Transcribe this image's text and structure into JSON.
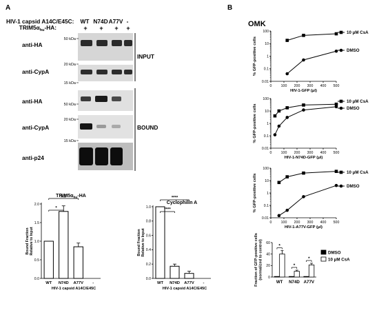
{
  "panelA": {
    "label": "A",
    "header": {
      "row1_label": "HIV-1 capsid A14C/E45C:",
      "row2_label": "TRIM5α",
      "row2_sub": "hu",
      "row2_suffix": "-HA:",
      "lanes": [
        "WT",
        "N74D",
        "A77V",
        "-"
      ],
      "trim_marks": [
        "+",
        "+",
        "+",
        "+"
      ]
    },
    "blots": {
      "input_ha": {
        "label": "anti-HA",
        "mw_top": "50 kDa",
        "mw_bottom": "20 kDa"
      },
      "input_cypa": {
        "label": "anti-CypA",
        "mw_bottom": "15 kDa"
      },
      "input_bracket": "INPUT",
      "bound_ha": {
        "label": "anti-HA",
        "mw": "50 kDa"
      },
      "bound_cypa": {
        "label": "anti-CypA",
        "mw_top": "20 kDa",
        "mw_bottom": "15 kDa"
      },
      "bound_bracket": "BOUND",
      "p24": {
        "label": "anti-p24"
      }
    }
  },
  "panelB": {
    "label": "B",
    "cell_line": "OMK"
  },
  "chart_data": [
    {
      "type": "bar",
      "title": "TRIM5αhu-HA",
      "title_main": "TRIM5α",
      "title_sub": "hu",
      "title_suffix": "-HA",
      "categories": [
        "WT",
        "N74D",
        "A77V",
        "-"
      ],
      "values": [
        1.0,
        1.8,
        0.85,
        0
      ],
      "errors": [
        0,
        0.15,
        0.1,
        0
      ],
      "ylabel": "Bound Fraction\nRelative to Input",
      "ylabel_lines": [
        "Bound Fraction",
        "Relative to Input"
      ],
      "xlabel": "HIV-1 capsid A14C/E45C",
      "ylim": [
        0,
        2.0
      ],
      "yticks": [
        "0.0",
        "0.5",
        "1.0",
        "1.5",
        "2.0"
      ],
      "ytick_values": [
        0,
        0.5,
        1.0,
        1.5,
        2.0
      ],
      "significance": [
        {
          "pair": [
            0,
            1
          ],
          "label": "*"
        },
        {
          "pair": [
            0,
            2
          ],
          "label": "NS"
        }
      ]
    },
    {
      "type": "bar",
      "title": "Cyclophilin A",
      "categories": [
        "WT",
        "N74D",
        "A77V",
        "-"
      ],
      "values": [
        1.0,
        0.17,
        0.07,
        0
      ],
      "errors": [
        0,
        0.03,
        0.03,
        0
      ],
      "ylabel": "Bound Fraction\nRelative to Input",
      "ylabel_lines": [
        "Bound Fraction",
        "Relative to Input"
      ],
      "xlabel": "HIV-1 capsid A14C/E45C",
      "ylim": [
        0,
        1.0
      ],
      "yticks": [
        "0.0",
        "0.2",
        "0.4",
        "0.6",
        "0.8",
        "1.0"
      ],
      "ytick_values": [
        0,
        0.2,
        0.4,
        0.6,
        0.8,
        1.0
      ],
      "significance": [
        {
          "pair": [
            0,
            1
          ],
          "label": "****"
        },
        {
          "pair": [
            0,
            2
          ],
          "label": "****"
        }
      ]
    },
    {
      "type": "line",
      "xlabel": "HIV-1-GFP (μl)",
      "ylabel": "% GFP-positive cells",
      "xlim": [
        0,
        500
      ],
      "xticks": [
        0,
        100,
        200,
        300,
        400,
        500
      ],
      "ylim": [
        0.01,
        100
      ],
      "yscale": "log",
      "yticks": [
        "0.01",
        "0.1",
        "1",
        "10",
        "100"
      ],
      "ytick_values": [
        0.01,
        0.1,
        1,
        10,
        100
      ],
      "series": [
        {
          "name": "10 μM CsA",
          "marker": "square",
          "x": [
            125,
            250,
            500
          ],
          "y": [
            18,
            45,
            60
          ]
        },
        {
          "name": "DMSO",
          "marker": "circle",
          "x": [
            125,
            250,
            500
          ],
          "y": [
            0.04,
            0.5,
            2.5
          ]
        }
      ]
    },
    {
      "type": "line",
      "xlabel": "HIV-1-N74D-GFP (μl)",
      "ylabel": "% GFP-positive cells",
      "xlim": [
        0,
        500
      ],
      "xticks": [
        0,
        100,
        200,
        300,
        400,
        500
      ],
      "ylim": [
        0.01,
        100
      ],
      "yscale": "log",
      "yticks": [
        "0.01",
        "0.1",
        "1",
        "10",
        "100"
      ],
      "ytick_values": [
        0.01,
        0.1,
        1,
        10,
        100
      ],
      "series": [
        {
          "name": "10 μM CsA",
          "marker": "square",
          "x": [
            31.25,
            62.5,
            125,
            250,
            500
          ],
          "y": [
            4,
            10,
            18,
            30,
            35
          ]
        },
        {
          "name": "DMSO",
          "marker": "circle",
          "x": [
            31.25,
            62.5,
            125,
            250,
            500
          ],
          "y": [
            0.12,
            0.6,
            3,
            12,
            22
          ]
        }
      ]
    },
    {
      "type": "line",
      "xlabel": "HIV-1-A77V-GFP (μl)",
      "ylabel": "% GFP-positive cells",
      "xlim": [
        0,
        500
      ],
      "xticks": [
        0,
        100,
        200,
        300,
        400,
        500
      ],
      "ylim": [
        0.01,
        100
      ],
      "yscale": "log",
      "yticks": [
        "0.01",
        "0.1",
        "1",
        "10",
        "100"
      ],
      "ytick_values": [
        0.01,
        0.1,
        1,
        10,
        100
      ],
      "series": [
        {
          "name": "10 μM CsA",
          "marker": "square",
          "x": [
            62.5,
            125,
            250,
            500
          ],
          "y": [
            7,
            20,
            40,
            55
          ]
        },
        {
          "name": "DMSO",
          "marker": "circle",
          "x": [
            62.5,
            125,
            250,
            500
          ],
          "y": [
            0.015,
            0.04,
            0.5,
            4
          ]
        }
      ]
    },
    {
      "type": "bar",
      "ylabel": "Fraction of GFP-positive cells\n(normalized to control)",
      "ylabel_lines": [
        "Fraction of GFP-positive cells",
        "(normalized to control)"
      ],
      "categories": [
        "WT",
        "N74D",
        "A77V"
      ],
      "ylim": [
        0,
        60
      ],
      "yticks": [
        "0",
        "20",
        "40",
        "60"
      ],
      "ytick_values": [
        0,
        20,
        40,
        60
      ],
      "series": [
        {
          "name": "DMSO",
          "color": "#000000",
          "values": [
            1,
            1,
            1
          ],
          "errors": [
            0,
            0,
            0
          ]
        },
        {
          "name": "10 μM CsA",
          "color": "#ffffff",
          "values": [
            40,
            10,
            21
          ],
          "errors": [
            6,
            2,
            3
          ]
        }
      ],
      "significance": [
        {
          "group": 0,
          "label": "*"
        },
        {
          "group": 1,
          "label": "*"
        },
        {
          "group": 2,
          "label": "*"
        }
      ]
    }
  ]
}
